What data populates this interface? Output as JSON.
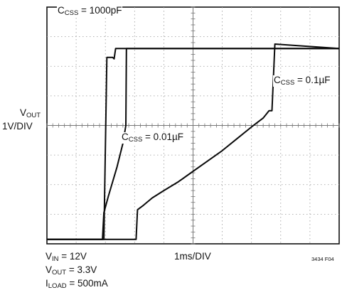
{
  "chart_data": {
    "type": "line",
    "title": "",
    "ylabel": {
      "main": "V",
      "sub": "OUT",
      "line2": "1V/DIV"
    },
    "xlabel": "1ms/DIV",
    "grid": true,
    "divisions": {
      "x": 10,
      "y": 8
    },
    "ylim": [
      0,
      8
    ],
    "xlim": [
      0,
      10
    ],
    "figure_id": "3434 F04",
    "conditions": [
      {
        "main": "V",
        "sub": "IN",
        "rest": " = 12V"
      },
      {
        "main": "V",
        "sub": "OUT",
        "rest": " = 3.3V"
      },
      {
        "main": "I",
        "sub": "LOAD",
        "rest": " = 500mA"
      }
    ],
    "series": [
      {
        "name": "C_CSS = 1000pF",
        "label": {
          "main": "C",
          "sub": "CSS",
          "rest": " = 1000pF"
        },
        "x": [
          0,
          1.95,
          2.05,
          2.25,
          2.3,
          2.35,
          10
        ],
        "y": [
          0.15,
          0.15,
          6.3,
          6.3,
          6.25,
          6.6,
          6.6
        ]
      },
      {
        "name": "C_CSS = 0.01µF",
        "label": {
          "main": "C",
          "sub": "CSS",
          "rest": " = 0.01µF"
        },
        "x": [
          0,
          1.9,
          1.95,
          2.1,
          2.4,
          2.6,
          2.7,
          2.72,
          10
        ],
        "y": [
          0.15,
          0.15,
          1.05,
          1.6,
          2.6,
          3.4,
          4.0,
          6.6,
          6.6
        ]
      },
      {
        "name": "C_CSS = 0.1µF",
        "label": {
          "main": "C",
          "sub": "CSS",
          "rest": " = 0.1µF"
        },
        "x": [
          0,
          3.05,
          3.1,
          3.3,
          3.6,
          4.0,
          4.5,
          5.0,
          5.5,
          6.0,
          6.5,
          7.0,
          7.4,
          7.6,
          7.7,
          7.8,
          10
        ],
        "y": [
          0.15,
          0.15,
          1.15,
          1.3,
          1.55,
          1.8,
          2.1,
          2.45,
          2.8,
          3.15,
          3.55,
          3.95,
          4.25,
          4.5,
          4.5,
          6.75,
          6.6
        ]
      }
    ]
  }
}
